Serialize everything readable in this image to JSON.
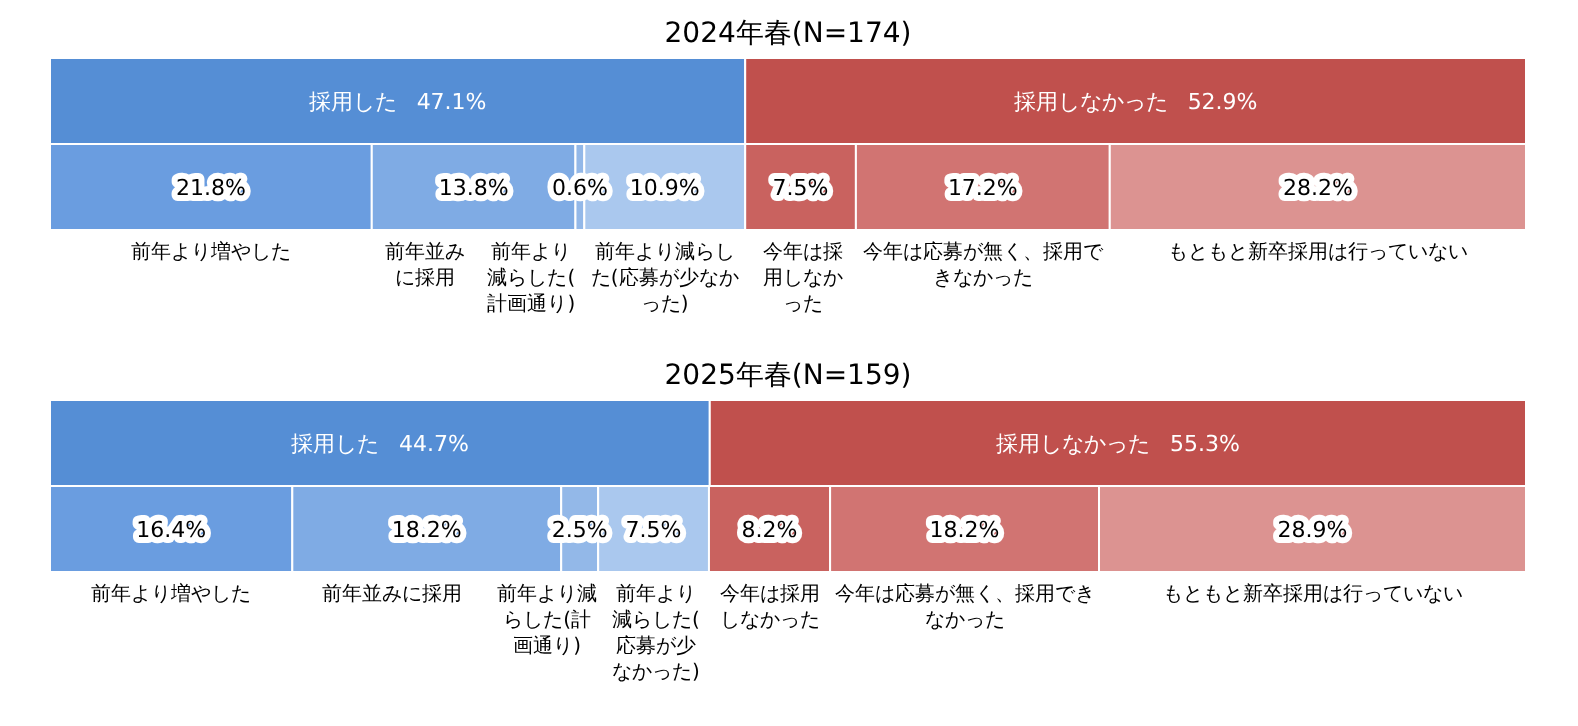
{
  "chart_data": [
    {
      "type": "bar",
      "orientation": "horizontal",
      "stacked": true,
      "title": "2024年春(N=174)",
      "categories": [
        null
      ],
      "series": [
        {
          "name": "採用した",
          "color": "#558ed5",
          "values": [
            47.1
          ],
          "value_labels": [
            "47.1%"
          ]
        },
        {
          "name": "採用しなかった",
          "color": "#c0504d",
          "values": [
            52.9
          ],
          "value_labels": [
            "52.9%"
          ]
        }
      ]
    },
    {
      "type": "bar",
      "orientation": "horizontal",
      "stacked": true,
      "categories": [
        null
      ],
      "series": [
        {
          "name": "前年より増やした",
          "color": "#6a9de0",
          "values": [
            21.8
          ],
          "value_labels": [
            "21.8%"
          ]
        },
        {
          "name": "前年並みに採用",
          "color": "#7fabe4",
          "values": [
            13.8
          ],
          "value_labels": [
            "13.8%"
          ]
        },
        {
          "name": "前年より減らした(計画通り)",
          "color": "#93b8e8",
          "values": [
            0.6
          ],
          "value_labels": [
            "0.6%"
          ]
        },
        {
          "name": "前年より減らした(応募が少なかった)",
          "color": "#aac8ee",
          "values": [
            10.9
          ],
          "value_labels": [
            "10.9%"
          ]
        },
        {
          "name": "今年は採用しなかった",
          "color": "#c9625f",
          "values": [
            7.5
          ],
          "value_labels": [
            "7.5%"
          ]
        },
        {
          "name": "今年は応募が無く、採用できなかった",
          "color": "#d17472",
          "values": [
            17.2
          ],
          "value_labels": [
            "17.2%"
          ]
        },
        {
          "name": "もともと新卒採用は行っていない",
          "color": "#dc9391",
          "values": [
            28.2
          ],
          "value_labels": [
            "28.2%"
          ]
        }
      ]
    },
    {
      "type": "bar",
      "orientation": "horizontal",
      "stacked": true,
      "title": "2025年春(N=159)",
      "categories": [
        null
      ],
      "series": [
        {
          "name": "採用した",
          "color": "#558ed5",
          "values": [
            44.7
          ],
          "value_labels": [
            "44.7%"
          ]
        },
        {
          "name": "採用しなかった",
          "color": "#c0504d",
          "values": [
            55.3
          ],
          "value_labels": [
            "55.3%"
          ]
        }
      ]
    },
    {
      "type": "bar",
      "orientation": "horizontal",
      "stacked": true,
      "categories": [
        null
      ],
      "series": [
        {
          "name": "前年より増やした",
          "color": "#6a9de0",
          "values": [
            16.4
          ],
          "value_labels": [
            "16.4%"
          ]
        },
        {
          "name": "前年並みに採用",
          "color": "#7fabe4",
          "values": [
            18.2
          ],
          "value_labels": [
            "18.2%"
          ]
        },
        {
          "name": "前年より減らした(計画通り)",
          "color": "#93b8e8",
          "values": [
            2.5
          ],
          "value_labels": [
            "2.5%"
          ]
        },
        {
          "name": "前年より減らした(応募が少なかった)",
          "color": "#aac8ee",
          "values": [
            7.5
          ],
          "value_labels": [
            "7.5%"
          ]
        },
        {
          "name": "今年は採用しなかった",
          "color": "#c9625f",
          "values": [
            8.2
          ],
          "value_labels": [
            "8.2%"
          ]
        },
        {
          "name": "今年は応募が無く、採用できなかった",
          "color": "#d17472",
          "values": [
            18.2
          ],
          "value_labels": [
            "18.2%"
          ]
        },
        {
          "name": "もともと新卒採用は行っていない",
          "color": "#dc9391",
          "values": [
            28.9
          ],
          "value_labels": [
            "28.9%"
          ]
        }
      ]
    }
  ]
}
